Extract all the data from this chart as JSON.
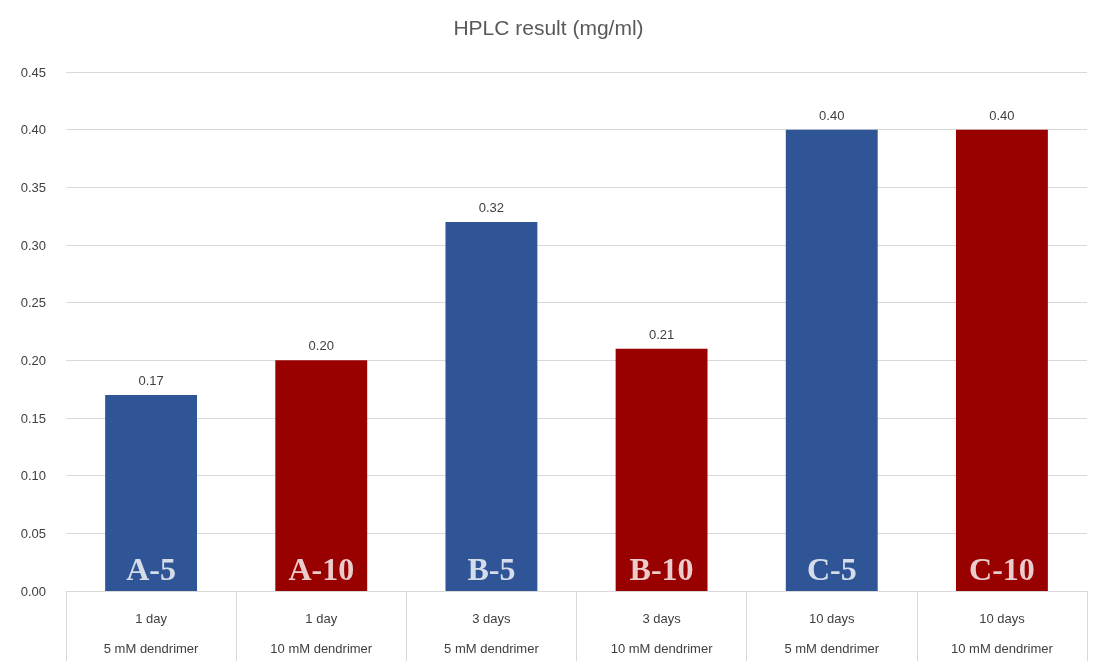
{
  "chart_data": {
    "type": "bar",
    "title": "HPLC result (mg/ml)",
    "categories": [
      "1 day\n5 mM dendrimer",
      "1 day\n10 mM dendrimer",
      "3 days\n5 mM dendrimer",
      "3 days\n10 mM dendrimer",
      "10 days\n5 mM dendrimer",
      "10 days\n10 mM dendrimer"
    ],
    "values": [
      0.17,
      0.2,
      0.32,
      0.21,
      0.4,
      0.4
    ],
    "colors": [
      "#2f5597",
      "#990000",
      "#2f5597",
      "#990000",
      "#2f5597",
      "#990000"
    ],
    "value_labels": [
      "0.17",
      "0.20",
      "0.32",
      "0.21",
      "0.40",
      "0.40"
    ],
    "ylim": [
      0,
      0.45
    ],
    "yticks": [
      {
        "value": 0,
        "label": "0.00"
      },
      {
        "value": 0.05,
        "label": "0.05"
      },
      {
        "value": 0.1,
        "label": "0.10"
      },
      {
        "value": 0.15,
        "label": "0.15"
      },
      {
        "value": 0.2,
        "label": "0.20"
      },
      {
        "value": 0.25,
        "label": "0.25"
      },
      {
        "value": 0.3,
        "label": "0.30"
      },
      {
        "value": 0.35,
        "label": "0.35"
      },
      {
        "value": 0.4,
        "label": "0.40"
      },
      {
        "value": 0.45,
        "label": "0.45"
      }
    ],
    "grid": "y",
    "annotations": [
      {
        "text": "A-5",
        "x": "1 day\n5 mM dendrimer",
        "y": 0
      },
      {
        "text": "A-10",
        "x": "1 day\n10 mM dendrimer",
        "y": 0
      },
      {
        "text": "B-5",
        "x": "3 days\n5 mM dendrimer",
        "y": 0
      },
      {
        "text": "B-10",
        "x": "3 days\n10 mM dendrimer",
        "y": 0
      },
      {
        "text": "C-5",
        "x": "10 days\n5 mM dendrimer",
        "y": 0
      },
      {
        "text": "C-10",
        "x": "10 days\n10 mM dendrimer",
        "y": 0
      }
    ]
  }
}
